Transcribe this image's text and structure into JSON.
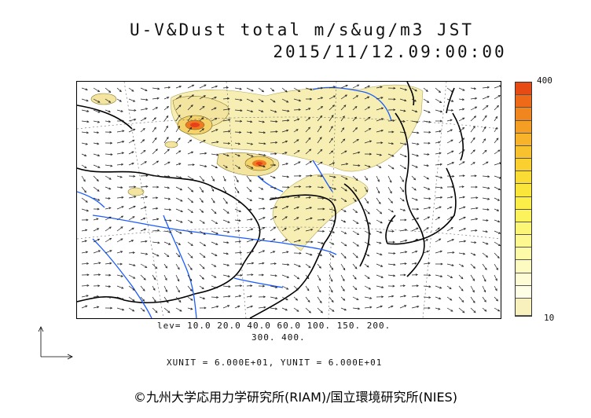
{
  "header": {
    "title": "U-V&Dust total m/s&ug/m3 JST",
    "datetime": "2015/11/12.09:00:00"
  },
  "colorbar": {
    "max_label": "400",
    "min_label": "10",
    "colors": [
      "#e84a14",
      "#ef6a18",
      "#f2861e",
      "#f59e24",
      "#f7b42a",
      "#f8c22e",
      "#f9d030",
      "#f9dc34",
      "#fae63a",
      "#fbee48",
      "#fcf35c",
      "#fcf676",
      "#fdf890",
      "#fdfaa8",
      "#fefbc0",
      "#fefcd4",
      "#fefde6"
    ],
    "low_fill": "#f8f1bd"
  },
  "levels": {
    "line1": "lev= 10.0 20.0 40.0 60.0 100. 150. 200.",
    "line2": "300. 400."
  },
  "units": {
    "text": "XUNIT = 6.000E+01, YUNIT = 6.000E+01"
  },
  "footer": {
    "copyright": "©九州大学応用力学研究所(RIAM)/国立環境研究所(NIES)"
  },
  "map_colors": {
    "coast": "#000000",
    "river": "#1a5cff",
    "dust_low": "#f6eeb2",
    "dust_mid": "#f3d36a",
    "dust_high": "#ee7a22",
    "dust_peak": "#e8401a"
  }
}
